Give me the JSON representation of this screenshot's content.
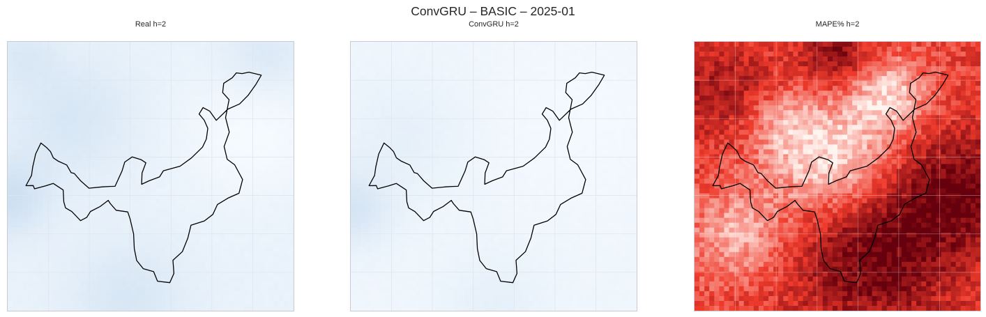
{
  "figure": {
    "suptitle": "ConvGRU – BASIC – 2025-01"
  },
  "colors": {
    "blues_low": "#f7fbff",
    "blues_high": "#c6dbef",
    "reds_low": "#fff5f0",
    "reds_mid": "#ef3b2c",
    "reds_high": "#67000d",
    "boundary": "#000000",
    "grid": "#dfe5ee",
    "frame": "#c8ccd2"
  },
  "chart_data": [
    {
      "type": "heatmap",
      "title": "Real h=2",
      "colormap": "Blues",
      "grid": true,
      "overlay": "region boundary outline (black)"
    },
    {
      "type": "heatmap",
      "title": "ConvGRU h=2",
      "colormap": "Blues",
      "grid": true,
      "overlay": "region boundary outline (black)"
    },
    {
      "type": "heatmap",
      "title": "MAPE% h=2",
      "colormap": "Reds",
      "grid": true,
      "overlay": "region boundary outline (black)"
    }
  ]
}
